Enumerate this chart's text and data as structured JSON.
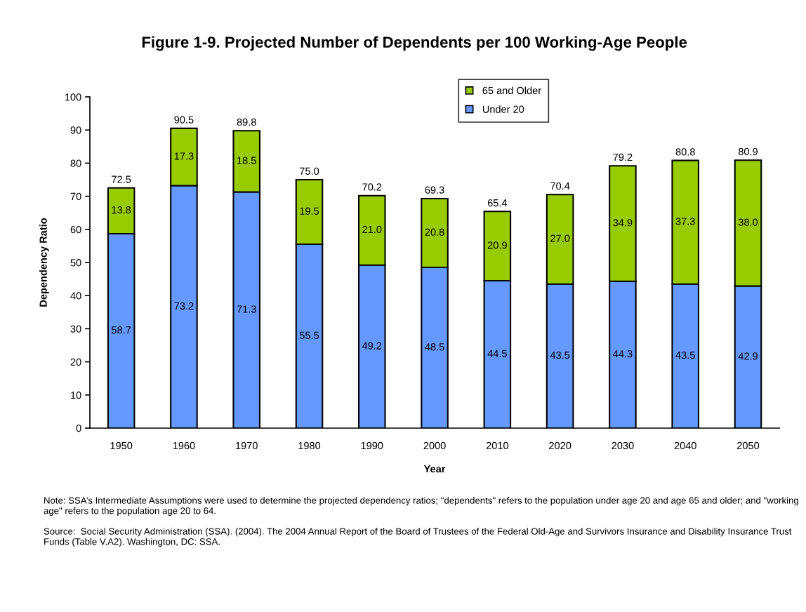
{
  "chart_data": {
    "type": "bar",
    "stacked": true,
    "title": "Figure 1-9. Projected Number of Dependents per 100 Working-Age People",
    "xlabel": "Year",
    "ylabel": "Dependency Ratio",
    "categories": [
      "1950",
      "1960",
      "1970",
      "1980",
      "1990",
      "2000",
      "2010",
      "2020",
      "2030",
      "2040",
      "2050"
    ],
    "series": [
      {
        "name": "Under 20",
        "color": "#6699ff",
        "values": [
          58.7,
          73.2,
          71.3,
          55.5,
          49.2,
          48.5,
          44.5,
          43.5,
          44.3,
          43.5,
          42.9
        ],
        "value_labels": [
          "58.7",
          "73.2",
          "71.3",
          "55.5",
          "49.2",
          "48.5",
          "44.5",
          "43.5",
          "44.3",
          "43.5",
          "42.9"
        ]
      },
      {
        "name": "65 and Older",
        "color": "#99cc00",
        "values": [
          13.8,
          17.3,
          18.5,
          19.5,
          21.0,
          20.8,
          20.9,
          27.0,
          34.9,
          37.3,
          38.0
        ],
        "value_labels": [
          "13.8",
          "17.3",
          "18.5",
          "19.5",
          "21.0",
          "20.8",
          "20.9",
          "27.0",
          "34.9",
          "37.3",
          "38.0"
        ]
      }
    ],
    "totals": [
      "72.5",
      "90.5",
      "89.8",
      "75.0",
      "70.2",
      "69.3",
      "65.4",
      "70.4",
      "79.2",
      "80.8",
      "80.9"
    ],
    "ylim": [
      0,
      100
    ],
    "yticks": [
      0,
      10,
      20,
      30,
      40,
      50,
      60,
      70,
      80,
      90,
      100
    ],
    "grid": false,
    "legend": "top",
    "annotations": [
      "Note: SSA’s Intermediate Assumptions were used to determine the projected dependency ratios; \"dependents\" refers to the population under age 20 and age 65 and older; and \"working age\" refers to the population age 20 to 64.",
      "Source:  Social Security Administration (SSA). (2004). The 2004 Annual Report of the Board of Trustees of the Federal Old-Age and Survivors Insurance and Disability Insurance Trust Funds (Table V.A2). Washington, DC: SSA."
    ]
  }
}
